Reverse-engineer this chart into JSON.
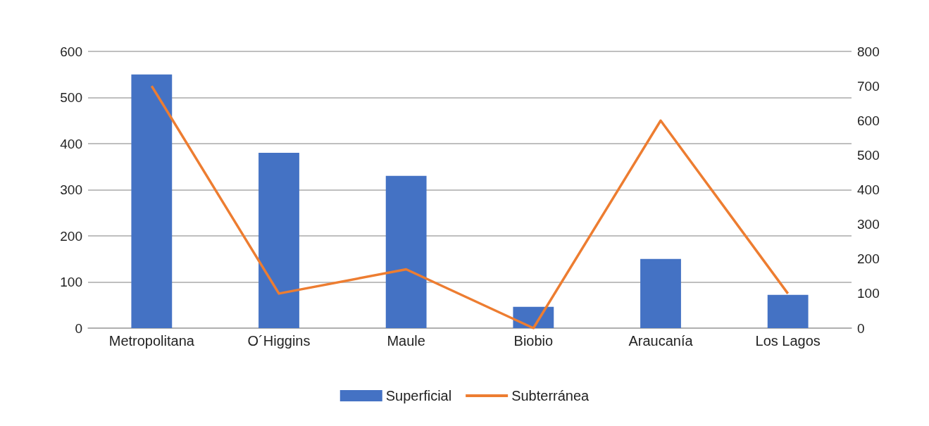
{
  "chart_data": {
    "type": "bar",
    "categories": [
      "Metropolitana",
      "O´Higgins",
      "Maule",
      "Biobio",
      "Araucanía",
      "Los Lagos"
    ],
    "series": [
      {
        "name": "Superficial",
        "color": "#4472c4",
        "values": [
          550,
          380,
          330,
          46,
          150,
          72
        ]
      },
      {
        "name": "Subterránea",
        "type": "line",
        "axis": "y2",
        "color": "#ed7d31",
        "values": [
          700,
          100,
          170,
          0,
          600,
          100
        ]
      }
    ],
    "ylim": [
      0,
      600
    ],
    "yticks": [
      0,
      100,
      200,
      300,
      400,
      500,
      600
    ],
    "y2lim": [
      0,
      800
    ],
    "y2ticks": [
      0,
      100,
      200,
      300,
      400,
      500,
      600,
      700,
      800
    ],
    "grid": "y",
    "legend": "bottom",
    "marker": "none",
    "line_style": "solid"
  }
}
